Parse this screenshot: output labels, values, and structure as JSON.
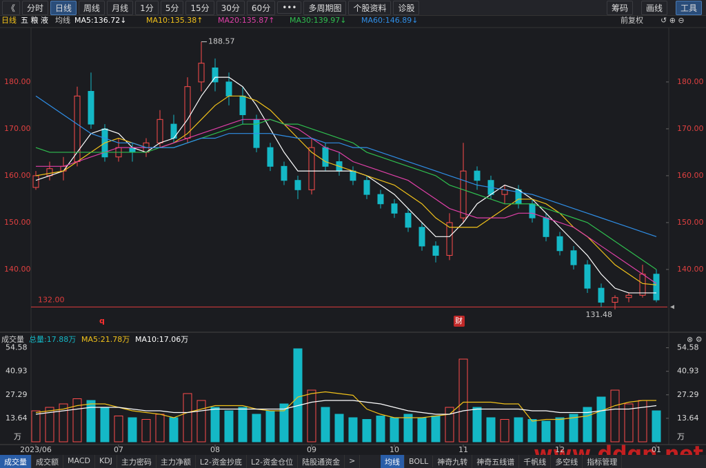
{
  "toolbar": {
    "left": [
      "《",
      "分时",
      "日线",
      "周线",
      "月线",
      "1分",
      "5分",
      "15分",
      "30分",
      "60分",
      "•••",
      "多周期图",
      "个股资料",
      "诊股"
    ],
    "right": [
      "筹码",
      "画线",
      "工具"
    ]
  },
  "info": {
    "period": "日线",
    "stock": "五 粮 液",
    "ma_title": "均线",
    "adjust": "前复权"
  },
  "volume_header": {
    "title": "成交量",
    "total": "总量:17.88万"
  },
  "volume_unit": "万",
  "watermark": "www.ddgp.net",
  "tabs": {
    "left": [
      "成交量",
      "成交额",
      "MACD",
      "KDJ",
      "主力密码",
      "主力净额",
      "L2-资金抄底",
      "L2-资金仓位",
      "陆股通资金",
      ">"
    ],
    "right": [
      "均线",
      "BOLL",
      "神奇九转",
      "神奇五线谱",
      "千帆线",
      "多空线",
      "指标管理"
    ]
  },
  "chart_data": [
    {
      "type": "candlestick",
      "up_color": "#ff4d4d",
      "down_color": "#14b8c6",
      "open": [
        157.5,
        160,
        161,
        163,
        178,
        170,
        164,
        166,
        165,
        167,
        171,
        168,
        180,
        183,
        180,
        177,
        172,
        166,
        162,
        159,
        157,
        166,
        163,
        161,
        159,
        156,
        154,
        152,
        149,
        145,
        143,
        151,
        161,
        159,
        156,
        157,
        154,
        151,
        147,
        144,
        141,
        136,
        133,
        134,
        134.5,
        139
      ],
      "high": [
        161,
        163,
        164,
        179,
        182,
        171,
        168,
        167,
        168,
        174,
        173,
        181,
        188.57,
        185,
        182,
        179,
        173,
        167,
        163,
        160,
        168,
        167,
        165,
        162,
        160,
        157,
        155,
        153,
        150,
        146,
        152,
        167,
        162,
        160,
        158,
        158,
        155,
        152,
        148,
        145,
        142,
        137,
        134.5,
        135,
        141,
        140
      ],
      "low": [
        157,
        159,
        159,
        162,
        170,
        163,
        163,
        163,
        164,
        166,
        167,
        167,
        178,
        178,
        175,
        171,
        165,
        161,
        158,
        155,
        156,
        161,
        160,
        158,
        155,
        153,
        151,
        148,
        144,
        141.5,
        142,
        150,
        157,
        155,
        154,
        153,
        150,
        146,
        143,
        140,
        135,
        132,
        131.48,
        133,
        134,
        133
      ],
      "close": [
        160,
        161.5,
        162,
        177,
        171,
        164,
        166,
        165,
        167,
        172,
        168,
        179,
        184,
        180,
        177,
        173,
        166,
        162,
        159,
        157,
        166,
        162,
        161,
        159,
        156,
        154,
        152,
        149,
        145,
        143,
        150,
        161,
        159,
        156,
        157,
        154,
        151,
        147,
        144,
        141,
        136,
        133,
        134,
        134.5,
        139,
        133.5
      ],
      "ylim": [
        127.2,
        191.6
      ],
      "yticks": [
        {
          "value": 140,
          "label": "140.00"
        },
        {
          "value": 150,
          "label": "150.00"
        },
        {
          "value": 160,
          "label": "160.00"
        },
        {
          "value": 170,
          "label": "170.00"
        },
        {
          "value": 180,
          "label": "180.00"
        }
      ],
      "max_label": "188.57",
      "min_label": "131.48",
      "ref_line": {
        "value": 132,
        "label": "132.00",
        "color": "#e03c3c"
      },
      "markers": [
        "q",
        "财"
      ],
      "series": [
        {
          "name": "MA5:136.72↓",
          "color": "#ffffff",
          "values": [
            159,
            160,
            161,
            165,
            169,
            170,
            169,
            166,
            165,
            167,
            168,
            172,
            177,
            181,
            181,
            179,
            175,
            170,
            165,
            161,
            161,
            161,
            161,
            161,
            160,
            158,
            156,
            153,
            150,
            147,
            147,
            150,
            154,
            156,
            158,
            157,
            155,
            152,
            149,
            146,
            143,
            139,
            136,
            135,
            135,
            135
          ]
        },
        {
          "name": "MA10:135.38↑",
          "color": "#f2c21a",
          "values": [
            160,
            160.5,
            161,
            163,
            165,
            167,
            168,
            167,
            166,
            166,
            167,
            169,
            172,
            175,
            177,
            177,
            176,
            174,
            171,
            168,
            165,
            163,
            162,
            161,
            160,
            159,
            158,
            156,
            154,
            151,
            149,
            149,
            149,
            151,
            153,
            155,
            155,
            154,
            152,
            149,
            147,
            144,
            141,
            139,
            137,
            136.7
          ]
        },
        {
          "name": "MA20:135.87↑",
          "color": "#e040a8",
          "values": [
            162,
            162,
            162,
            163,
            164,
            165,
            166,
            166,
            166,
            166,
            167,
            168,
            169,
            170,
            171,
            172,
            172,
            172,
            171,
            170,
            168,
            166,
            165,
            163,
            162,
            161,
            160,
            159,
            157,
            155,
            153,
            152,
            151,
            151,
            151,
            152,
            152,
            151,
            150,
            149,
            147,
            145,
            143,
            141,
            139,
            137
          ]
        },
        {
          "name": "MA30:139.97↓",
          "color": "#2fbf4f",
          "values": [
            166,
            165,
            165,
            165,
            165,
            165,
            165,
            165,
            165,
            166,
            166,
            167,
            168,
            169,
            170,
            171,
            171,
            172,
            171,
            171,
            170,
            169,
            168,
            167,
            165,
            164,
            163,
            162,
            161,
            160,
            158,
            157,
            156,
            155,
            154,
            154,
            154,
            153,
            152,
            151,
            150,
            148,
            146,
            144,
            142,
            140
          ]
        },
        {
          "name": "MA60:146.89↓",
          "color": "#2f8fe8",
          "values": [
            177,
            175,
            173,
            171,
            169,
            168,
            167,
            167,
            166,
            166,
            166,
            167,
            168,
            168,
            169,
            169,
            169,
            169,
            168.5,
            168,
            168,
            167,
            167,
            166,
            166,
            165,
            164,
            163,
            162,
            161,
            160,
            159,
            158,
            157.5,
            157,
            156.5,
            156,
            155,
            154,
            153,
            152,
            151,
            150,
            149,
            148,
            147
          ]
        }
      ]
    },
    {
      "type": "bar",
      "categories": [
        "2023/06",
        null,
        null,
        null,
        null,
        null,
        "07",
        null,
        null,
        null,
        null,
        null,
        null,
        "08",
        null,
        null,
        null,
        null,
        null,
        null,
        "09",
        null,
        null,
        null,
        null,
        null,
        "10",
        null,
        null,
        null,
        null,
        "11",
        null,
        null,
        null,
        null,
        null,
        null,
        "12",
        null,
        null,
        null,
        null,
        null,
        null,
        "01"
      ],
      "values": [
        18,
        20,
        22,
        25,
        24,
        20,
        15,
        14,
        13,
        16,
        14,
        28,
        24,
        20,
        18,
        20,
        16,
        18,
        22,
        54,
        30,
        20,
        16,
        14,
        13,
        15,
        14,
        16,
        14,
        15,
        20,
        48,
        20,
        14,
        13,
        14,
        13,
        12,
        14,
        16,
        20,
        26,
        30,
        22,
        24,
        18
      ],
      "ylim": [
        0,
        56.4
      ],
      "yticks": [
        13.64,
        27.29,
        40.93,
        54.58
      ],
      "series": [
        {
          "name": "MA5:21.78万",
          "color": "#f2c21a",
          "values": [
            17,
            18,
            19,
            21,
            22,
            22,
            20,
            18,
            17,
            16,
            14,
            17,
            19,
            21,
            21,
            21,
            19,
            18,
            18,
            26,
            28,
            29,
            28,
            27,
            19,
            16,
            14,
            14,
            14,
            15,
            16,
            23,
            23,
            23,
            22,
            22,
            12,
            13,
            13,
            14,
            15,
            18,
            21,
            23,
            24,
            24
          ]
        },
        {
          "name": "MA10:17.06万",
          "color": "#ffffff",
          "values": [
            16,
            17,
            18,
            19,
            20,
            20,
            20,
            19,
            18,
            18,
            17,
            17,
            18,
            19,
            19,
            19,
            19,
            19,
            19,
            21,
            23,
            24,
            24,
            24,
            23,
            22,
            20,
            18,
            17,
            16,
            16,
            18,
            19,
            19,
            19,
            19,
            18,
            18,
            17,
            17,
            17,
            18,
            19,
            19,
            20,
            21
          ]
        }
      ]
    }
  ]
}
